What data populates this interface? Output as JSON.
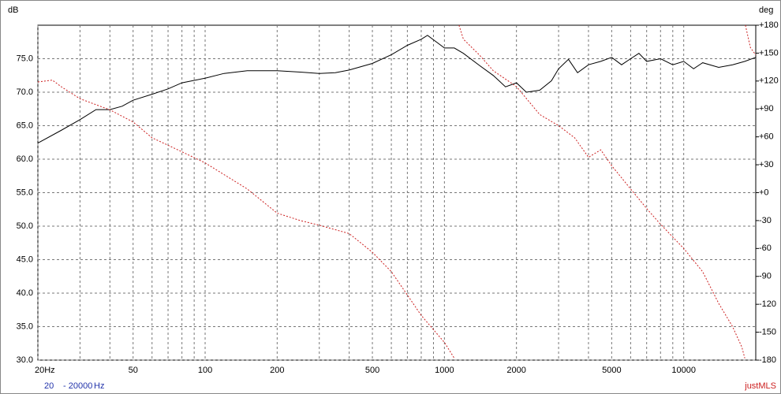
{
  "chart_data": {
    "type": "line",
    "y_label": "dB",
    "y2_label": "deg",
    "xscale": "log",
    "xlim": [
      20,
      20000
    ],
    "xticks": [
      {
        "value": 20,
        "label": "20Hz"
      },
      50,
      100,
      200,
      500,
      1000,
      2000,
      5000,
      10000
    ],
    "xminor": [
      30,
      40,
      60,
      70,
      80,
      90,
      300,
      400,
      600,
      700,
      800,
      900,
      3000,
      4000,
      6000,
      7000,
      8000,
      9000
    ],
    "ylim": [
      30,
      80
    ],
    "yticks": [
      {
        "value": 30,
        "label": "30.0"
      },
      {
        "value": 35,
        "label": "35.0"
      },
      {
        "value": 40,
        "label": "40.0"
      },
      {
        "value": 45,
        "label": "45.0"
      },
      {
        "value": 50,
        "label": "50.0"
      },
      {
        "value": 55,
        "label": "55.0"
      },
      {
        "value": 60,
        "label": "60.0"
      },
      {
        "value": 65,
        "label": "65.0"
      },
      {
        "value": 70,
        "label": "70.0"
      },
      {
        "value": 75,
        "label": "75.0"
      }
    ],
    "y2lim": [
      -180,
      180
    ],
    "y2ticks": [
      {
        "value": 180,
        "label": "+180"
      },
      {
        "value": 150,
        "label": "+150"
      },
      {
        "value": 120,
        "label": "+120"
      },
      {
        "value": 90,
        "label": "+90"
      },
      {
        "value": 60,
        "label": "+60"
      },
      {
        "value": 30,
        "label": "+30"
      },
      {
        "value": 0,
        "label": "+0"
      },
      {
        "value": -30,
        "label": "-30"
      },
      {
        "value": -60,
        "label": "-60"
      },
      {
        "value": -90,
        "label": "-90"
      },
      {
        "value": -120,
        "label": "-120"
      },
      {
        "value": -150,
        "label": "-150"
      },
      {
        "value": -180,
        "label": "-180"
      }
    ],
    "grid": true,
    "series": [
      {
        "color": "#000000",
        "dash": false,
        "x": [
          20,
          25,
          30,
          35,
          40,
          45,
          50,
          60,
          70,
          80,
          100,
          120,
          150,
          200,
          250,
          300,
          350,
          400,
          500,
          600,
          700,
          800,
          850,
          1000,
          1100,
          1200,
          1400,
          1600,
          1800,
          2000,
          2200,
          2500,
          2800,
          3000,
          3300,
          3600,
          4000,
          4500,
          5000,
          5500,
          6000,
          6500,
          7000,
          8000,
          9000,
          10000,
          11000,
          12000,
          14000,
          16000,
          18000,
          20000
        ],
        "values": [
          62.4,
          64.3,
          65.9,
          67.4,
          67.4,
          67.9,
          68.8,
          69.7,
          70.5,
          71.4,
          72.1,
          72.8,
          73.2,
          73.2,
          73.0,
          72.8,
          72.9,
          73.3,
          74.3,
          75.6,
          77.0,
          77.9,
          78.5,
          76.6,
          76.6,
          75.8,
          74.0,
          72.5,
          70.8,
          71.4,
          70.0,
          70.3,
          71.7,
          73.5,
          74.9,
          72.9,
          74.1,
          74.6,
          75.2,
          74.1,
          75.0,
          75.8,
          74.6,
          75.0,
          74.1,
          74.6,
          73.5,
          74.4,
          73.7,
          74.1,
          74.6,
          75.2
        ]
      },
      {
        "color": "#cc2020",
        "dash": true,
        "axis": "y2",
        "x": [
          20,
          23,
          25,
          30,
          40,
          50,
          60,
          80,
          100,
          150,
          200,
          250,
          300,
          400,
          500,
          600,
          700,
          800,
          1000,
          1100,
          1130,
          1150,
          1200,
          1400,
          1600,
          2000,
          2500,
          3000,
          3500,
          4000,
          4500,
          5000,
          6000,
          7000,
          8000,
          10000,
          12000,
          14000,
          16000,
          17500,
          18000,
          18050,
          18100,
          19000,
          20000
        ],
        "values": [
          119,
          121,
          114,
          101,
          89,
          76,
          59,
          44,
          32,
          4,
          -22,
          -30,
          -35,
          -44,
          -64,
          -85,
          -110,
          -132,
          -161,
          -178,
          null,
          180,
          165,
          148,
          131,
          114,
          84,
          72,
          59,
          38,
          46,
          29,
          4,
          -17,
          -34,
          -60,
          -85,
          -119,
          -144,
          -166,
          -178,
          null,
          180,
          156,
          148
        ]
      }
    ],
    "footer": {
      "from": "20",
      "to": "- 20000",
      "unit": "Hz",
      "brand": "justMLS"
    }
  }
}
